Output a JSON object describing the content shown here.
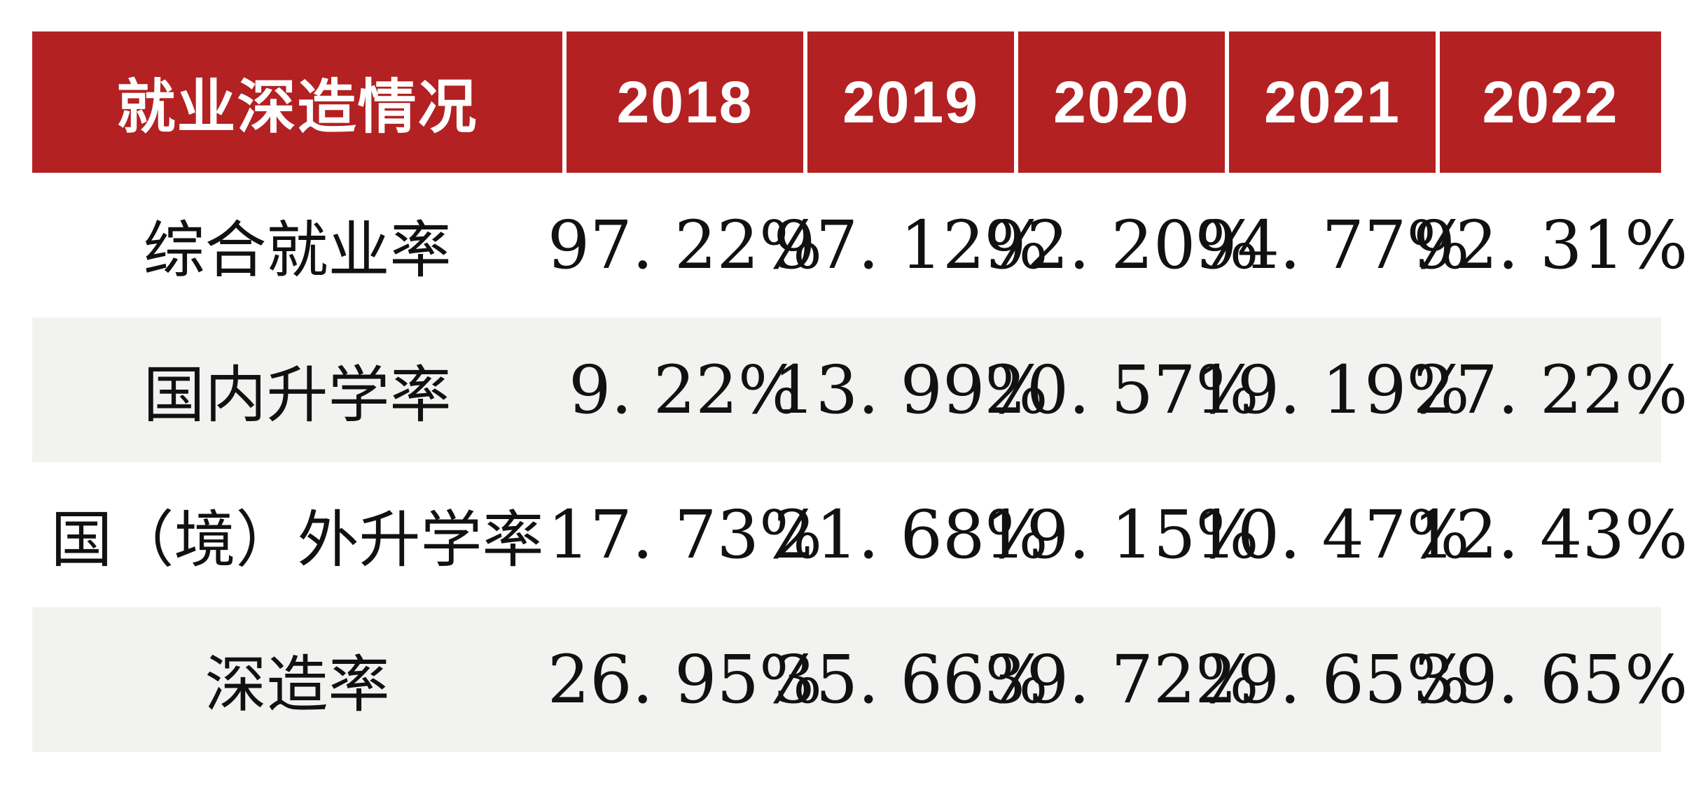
{
  "table": {
    "title": "就业深造情况",
    "years": [
      "2018",
      "2019",
      "2020",
      "2021",
      "2022"
    ],
    "rows": [
      {
        "label": "综合就业率",
        "values": [
          "97. 22%",
          "97. 12%",
          "92. 20%",
          "94. 77%",
          "92. 31%"
        ]
      },
      {
        "label": "国内升学率",
        "values": [
          "9. 22%",
          "13. 99%",
          "20. 57%",
          "19. 19%",
          "27. 22%"
        ]
      },
      {
        "label": "国（境）外升学率",
        "values": [
          "17. 73%",
          "21. 68%",
          "19. 15%",
          "10. 47%",
          "12. 43%"
        ]
      },
      {
        "label": "深造率",
        "values": [
          "26. 95%",
          "35. 66%",
          "39. 72%",
          "29. 65%",
          "39. 65%"
        ]
      }
    ],
    "colors": {
      "header_bg": "#b32122",
      "header_text": "#ffffff",
      "row_bg": "#ffffff",
      "row_alt_bg": "#f2f2f1",
      "body_text": "#111111"
    }
  },
  "chart_data": {
    "type": "table",
    "title": "就业深造情况",
    "categories": [
      "2018",
      "2019",
      "2020",
      "2021",
      "2022"
    ],
    "series": [
      {
        "name": "综合就业率",
        "values": [
          97.22,
          97.12,
          92.2,
          94.77,
          92.31
        ]
      },
      {
        "name": "国内升学率",
        "values": [
          9.22,
          13.99,
          20.57,
          19.19,
          27.22
        ]
      },
      {
        "name": "国（境）外升学率",
        "values": [
          17.73,
          21.68,
          19.15,
          10.47,
          12.43
        ]
      },
      {
        "name": "深造率",
        "values": [
          26.95,
          35.66,
          39.72,
          29.65,
          39.65
        ]
      }
    ],
    "unit": "%",
    "layout": {
      "header_fill": "#b32122",
      "alternating_rows": true,
      "grid": "off"
    }
  }
}
